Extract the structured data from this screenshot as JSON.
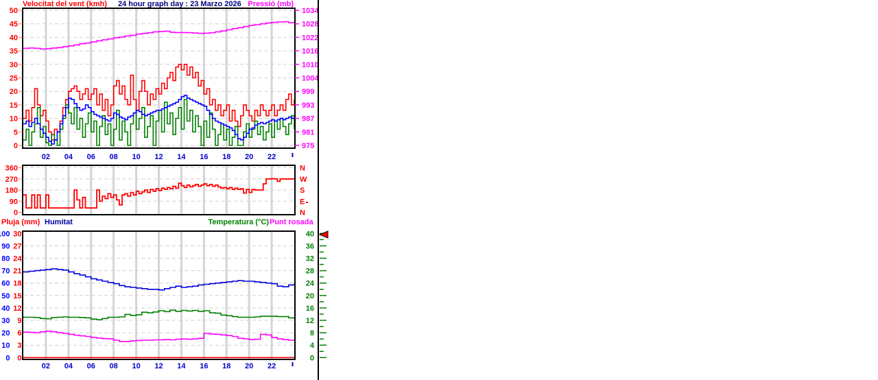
{
  "window": {
    "background": "#ffffff",
    "divider_color": "#000000"
  },
  "colors": {
    "red": "#ff0000",
    "wind_avg_blue": "#0000ff",
    "green": "#008000",
    "magenta": "#ff00ff",
    "title_navy": "#000080",
    "x_label_blue": "#0000cc",
    "humidity_blue": "#0000dd",
    "grid_gray": "#d4d4d4",
    "dash_gray": "#cfcfcf"
  },
  "chart_data": [
    {
      "id": "wind-pressure",
      "type": "line",
      "left_label": "Velocitat del vent (kmh)",
      "title": "24 hour graph day : 23 Marzo 2026",
      "right_label": "Pressió (mb)",
      "x_unit": "hour of day (0-24)",
      "xticks": [
        "02",
        "04",
        "06",
        "08",
        "10",
        "12",
        "14",
        "16",
        "18",
        "20",
        "22"
      ],
      "xtick_hours": [
        2,
        4,
        6,
        8,
        10,
        12,
        14,
        16,
        18,
        20,
        22
      ],
      "left_axis": {
        "min": 0,
        "max": 50,
        "ticks": [
          50,
          45,
          40,
          35,
          30,
          25,
          20,
          15,
          10,
          5,
          0
        ],
        "color": "#ff0000"
      },
      "right_axis": {
        "min": 975,
        "max": 1034,
        "ticks": [
          1034,
          1028,
          1022,
          1016,
          1010,
          1004,
          999,
          993,
          987,
          981,
          975
        ],
        "color": "#ff00ff"
      },
      "series": [
        {
          "name": "wind-gust",
          "color": "#ff0000",
          "axis": "left",
          "interval_h": 0.25,
          "values": [
            10,
            13,
            9,
            14,
            21,
            15,
            11,
            13,
            9,
            5,
            2,
            6,
            5,
            9,
            14,
            17,
            20,
            21,
            22,
            20,
            17,
            19,
            21,
            17,
            19,
            21,
            15,
            19,
            13,
            17,
            11,
            15,
            22,
            24,
            19,
            22,
            17,
            15,
            26,
            17,
            13,
            20,
            24,
            20,
            15,
            19,
            17,
            21,
            19,
            23,
            21,
            25,
            27,
            24,
            29,
            30,
            28,
            30,
            26,
            29,
            25,
            27,
            22,
            24,
            19,
            21,
            15,
            17,
            13,
            15,
            11,
            13,
            15,
            9,
            13,
            9,
            7,
            11,
            15,
            13,
            11,
            9,
            13,
            11,
            15,
            13,
            11,
            13,
            15,
            11,
            13,
            15,
            13,
            17,
            19,
            15,
            17
          ]
        },
        {
          "name": "wind-lull",
          "color": "#008000",
          "axis": "left",
          "interval_h": 0.25,
          "values": [
            2,
            6,
            0,
            5,
            8,
            14,
            3,
            7,
            1,
            0,
            4,
            2,
            0,
            6,
            10,
            15,
            12,
            8,
            14,
            6,
            10,
            3,
            8,
            12,
            5,
            9,
            0,
            7,
            11,
            4,
            8,
            0,
            6,
            13,
            2,
            9,
            5,
            0,
            8,
            12,
            6,
            10,
            14,
            3,
            7,
            11,
            0,
            9,
            13,
            5,
            16,
            8,
            12,
            4,
            10,
            14,
            6,
            17,
            9,
            13,
            5,
            11,
            7,
            0,
            9,
            3,
            12,
            6,
            0,
            4,
            8,
            2,
            6,
            0,
            3,
            7,
            0,
            0,
            5,
            8,
            3,
            6,
            9,
            4,
            7,
            2,
            5,
            8,
            3,
            9,
            6,
            10,
            7,
            4,
            8,
            11,
            6
          ]
        },
        {
          "name": "wind-average",
          "color": "#0000ff",
          "axis": "left",
          "interval_h": 0.25,
          "values": [
            8,
            9,
            7,
            8.5,
            10,
            8,
            6,
            4.5,
            3,
            1.5,
            0.5,
            2,
            5,
            8,
            11,
            14,
            17.5,
            17,
            15.5,
            14,
            13,
            13.5,
            15,
            14,
            12.5,
            11.5,
            11,
            10.5,
            10,
            9.5,
            9,
            10,
            12,
            11.5,
            10.5,
            10,
            9.5,
            10.5,
            11,
            12,
            13,
            12.5,
            11.5,
            11,
            11.5,
            12,
            12.5,
            13,
            13,
            13.5,
            14,
            14.5,
            15,
            15.5,
            16,
            17,
            18,
            18.5,
            17.5,
            17,
            16.5,
            16,
            15.5,
            15,
            14.5,
            13,
            11.5,
            10,
            9,
            8.5,
            8,
            7.5,
            7,
            6.5,
            5.5,
            4,
            2.5,
            2,
            3,
            4.5,
            6,
            6.5,
            7.5,
            8,
            8.5,
            8,
            8.5,
            9,
            9.5,
            9,
            9.5,
            10,
            9.5,
            10,
            10.5,
            10,
            10.5
          ]
        },
        {
          "name": "pressure",
          "color": "#ff00ff",
          "axis": "right",
          "interval_h": 0.5,
          "values": [
            1017.4,
            1017.5,
            1017.4,
            1017.1,
            1017.2,
            1017.5,
            1017.7,
            1018.1,
            1018.5,
            1018.9,
            1019.4,
            1019.7,
            1020.2,
            1020.7,
            1021.1,
            1021.5,
            1022.0,
            1022.3,
            1022.8,
            1023.1,
            1023.6,
            1023.9,
            1024.2,
            1024.6,
            1024.7,
            1024.9,
            1024.4,
            1024.3,
            1024.3,
            1024.2,
            1024.1,
            1023.9,
            1024.0,
            1024.2,
            1024.6,
            1025.0,
            1025.5,
            1026.0,
            1026.4,
            1026.9,
            1027.4,
            1027.7,
            1028.1,
            1028.5,
            1028.7,
            1028.9,
            1029.0,
            1028.6,
            1029.0
          ]
        }
      ]
    },
    {
      "id": "wind-direction",
      "type": "line",
      "left_axis": {
        "min": 0,
        "max": 360,
        "ticks": [
          360,
          270,
          180,
          90,
          0
        ],
        "color": "#ff0000"
      },
      "right_axis_letters": [
        "N",
        "W",
        "S",
        "E",
        "N"
      ],
      "series": [
        {
          "name": "wind-direction",
          "color": "#ff0000",
          "interval_h": 0.25,
          "values": [
            140,
            35,
            35,
            140,
            35,
            140,
            35,
            35,
            140,
            35,
            35,
            35,
            35,
            35,
            35,
            35,
            35,
            35,
            180,
            100,
            35,
            120,
            35,
            35,
            35,
            35,
            180,
            90,
            130,
            110,
            150,
            120,
            140,
            100,
            60,
            140,
            150,
            130,
            160,
            140,
            170,
            150,
            165,
            180,
            160,
            185,
            170,
            190,
            175,
            195,
            185,
            200,
            190,
            210,
            195,
            235,
            215,
            200,
            220,
            205,
            215,
            225,
            210,
            220,
            230,
            215,
            225,
            210,
            220,
            205,
            195,
            200,
            190,
            200,
            185,
            195,
            185,
            190,
            155,
            185,
            160,
            185,
            180,
            180,
            180,
            230,
            270,
            270,
            272,
            270,
            250,
            270,
            270,
            268,
            270,
            270,
            270
          ]
        }
      ]
    },
    {
      "id": "rain-humidity-temp-dew",
      "type": "line",
      "labels": {
        "rain": "Pluja (mm)",
        "humidity": "Humitat",
        "temp": "Temperatura (°C)",
        "dew": "Punt rosada"
      },
      "xticks": [
        "02",
        "04",
        "06",
        "08",
        "10",
        "12",
        "14",
        "16",
        "18",
        "20",
        "22"
      ],
      "xtick_hours": [
        2,
        4,
        6,
        8,
        10,
        12,
        14,
        16,
        18,
        20,
        22
      ],
      "axes": {
        "humidity": {
          "min": 0,
          "max": 100,
          "ticks": [
            100,
            90,
            80,
            70,
            60,
            50,
            40,
            30,
            20,
            10,
            0
          ],
          "color": "#0000ff"
        },
        "rain": {
          "min": 0,
          "max": 30,
          "ticks": [
            30,
            27,
            24,
            21,
            18,
            15,
            12,
            9,
            6,
            3,
            0
          ],
          "color": "#ff0000"
        },
        "temp": {
          "min": 0,
          "max": 40,
          "ticks": [
            40,
            36,
            32,
            28,
            24,
            20,
            16,
            12,
            8,
            4,
            0
          ],
          "color": "#008000"
        }
      },
      "series": [
        {
          "name": "rain",
          "axis": "rain",
          "color": "#ff0000",
          "interval_h": 0.5,
          "values": [
            0,
            0,
            0,
            0,
            0,
            0,
            0,
            0,
            0,
            0,
            0,
            0,
            0,
            0,
            0,
            0,
            0,
            0,
            0,
            0,
            0,
            0,
            0,
            0,
            0,
            0,
            0,
            0,
            0,
            0,
            0,
            0,
            0,
            0,
            0,
            0,
            0,
            0,
            0,
            0,
            0,
            0,
            0,
            0,
            0,
            0,
            0,
            0,
            0
          ]
        },
        {
          "name": "dew-point",
          "axis": "temp",
          "color": "#ff00ff",
          "interval_h": 0.5,
          "values": [
            8.2,
            8.1,
            8,
            8.3,
            8.5,
            8.3,
            8,
            7.8,
            7.5,
            7.2,
            7,
            6.8,
            6.5,
            6.3,
            6.1,
            6,
            5.6,
            5.2,
            5.2,
            5.4,
            5.5,
            5.6,
            5.6,
            5.7,
            5.7,
            5.8,
            5.7,
            5.9,
            6,
            5.9,
            6,
            6.2,
            7.8,
            7.6,
            7.5,
            7.3,
            7.1,
            6.8,
            6.2,
            6,
            5.8,
            5.9,
            7.5,
            7.3,
            6.5,
            6,
            5.8,
            5.6,
            5.4
          ]
        },
        {
          "name": "temperature",
          "axis": "temp",
          "color": "#008000",
          "interval_h": 0.5,
          "values": [
            13,
            13,
            12.9,
            12.6,
            12.5,
            12.9,
            13,
            13.1,
            13,
            13,
            12.9,
            12.8,
            12.4,
            12.2,
            12.6,
            13,
            13,
            13.1,
            13.9,
            13.6,
            13.8,
            14.6,
            14.4,
            14.7,
            15.1,
            14.8,
            15.3,
            14.9,
            15.2,
            15,
            15.2,
            14.9,
            15.1,
            14.4,
            14.3,
            13.7,
            13.5,
            13.2,
            13,
            13,
            13,
            13.1,
            13.3,
            13.3,
            13.3,
            13.2,
            13.2,
            12.8,
            12.5
          ]
        },
        {
          "name": "humidity",
          "axis": "humidity",
          "color": "#0000dd",
          "interval_h": 0.5,
          "values": [
            69,
            69.5,
            70,
            70.5,
            71,
            71.5,
            71,
            70.5,
            69,
            67.5,
            66.5,
            65,
            63.5,
            62.5,
            61.5,
            60.5,
            59.5,
            58,
            57,
            56.5,
            56,
            55.5,
            55,
            55,
            54.5,
            55.5,
            56.5,
            57.5,
            56.5,
            57,
            57.5,
            58.5,
            59,
            59.5,
            60,
            60.5,
            61,
            61.5,
            62,
            61.5,
            61.5,
            61,
            60.5,
            60,
            59.5,
            57.5,
            57,
            58.5,
            59.5
          ]
        }
      ],
      "marker": {
        "name": "temp-scale-top-arrow",
        "value": 40,
        "color": "#ff0000"
      }
    }
  ]
}
